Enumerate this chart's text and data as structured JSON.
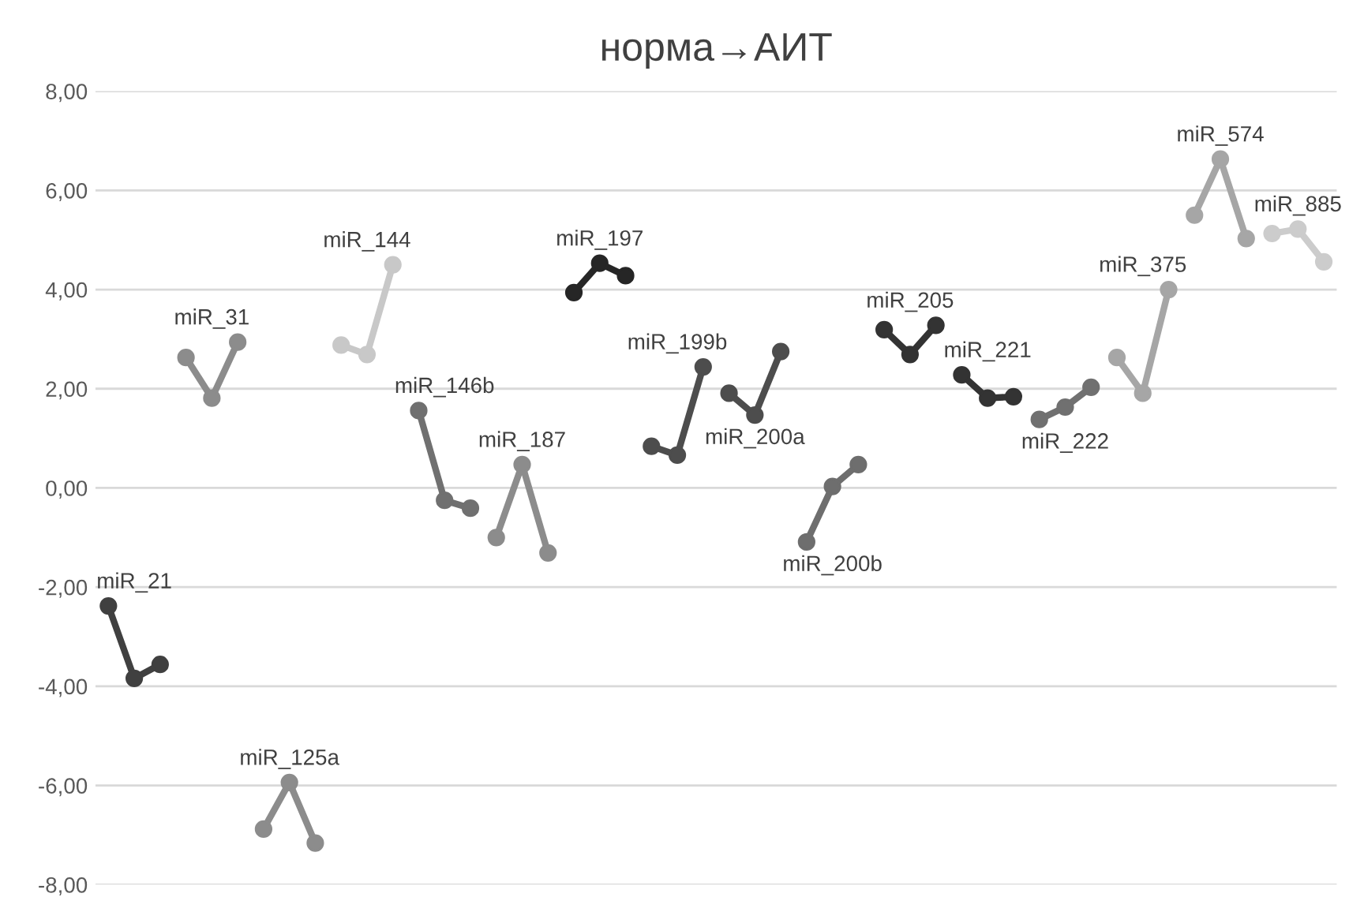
{
  "chart_data": {
    "type": "line",
    "title": "норма→АИТ",
    "categories": [
      null,
      null,
      null,
      null,
      null,
      null,
      null,
      null,
      null,
      null,
      null,
      null,
      null,
      null,
      null,
      null,
      null,
      null,
      null,
      null,
      null,
      null,
      null,
      null,
      null,
      null,
      null,
      null,
      null,
      null,
      null,
      null,
      null,
      null,
      null,
      null,
      null,
      null,
      null,
      null,
      null,
      null,
      null,
      null,
      null,
      null,
      null,
      null
    ],
    "ylim": [
      -8,
      8
    ],
    "yticks": [
      {
        "value": -8,
        "label": "-8,00"
      },
      {
        "value": -6,
        "label": "-6,00"
      },
      {
        "value": -4,
        "label": "-4,00"
      },
      {
        "value": -2,
        "label": "-2,00"
      },
      {
        "value": 0,
        "label": "0,00"
      },
      {
        "value": 2,
        "label": "2,00"
      },
      {
        "value": 4,
        "label": "4,00"
      },
      {
        "value": 6,
        "label": "6,00"
      },
      {
        "value": 8,
        "label": "8,00"
      }
    ],
    "grid": "y",
    "marker": "circle",
    "line_style": "solid",
    "tick_labels": "y",
    "series": [
      {
        "name": "miR_21",
        "color": "#404040",
        "values": [
          -2.38,
          -3.84,
          -3.56,
          null,
          null,
          null,
          null,
          null,
          null,
          null,
          null,
          null,
          null,
          null,
          null,
          null,
          null,
          null,
          null,
          null,
          null,
          null,
          null,
          null,
          null,
          null,
          null,
          null,
          null,
          null,
          null,
          null,
          null,
          null,
          null,
          null,
          null,
          null,
          null,
          null,
          null,
          null,
          null,
          null,
          null,
          null,
          null,
          null
        ]
      },
      {
        "name": "miR_31",
        "color": "#8c8c8c",
        "values": [
          null,
          null,
          null,
          2.63,
          1.81,
          2.94,
          null,
          null,
          null,
          null,
          null,
          null,
          null,
          null,
          null,
          null,
          null,
          null,
          null,
          null,
          null,
          null,
          null,
          null,
          null,
          null,
          null,
          null,
          null,
          null,
          null,
          null,
          null,
          null,
          null,
          null,
          null,
          null,
          null,
          null,
          null,
          null,
          null,
          null,
          null,
          null,
          null,
          null
        ]
      },
      {
        "name": "miR_125a",
        "color": "#8c8c8c",
        "values": [
          null,
          null,
          null,
          null,
          null,
          null,
          -6.88,
          -5.94,
          -7.16,
          null,
          null,
          null,
          null,
          null,
          null,
          null,
          null,
          null,
          null,
          null,
          null,
          null,
          null,
          null,
          null,
          null,
          null,
          null,
          null,
          null,
          null,
          null,
          null,
          null,
          null,
          null,
          null,
          null,
          null,
          null,
          null,
          null,
          null,
          null,
          null,
          null,
          null,
          null
        ]
      },
      {
        "name": "miR_144",
        "color": "#c8c8c8",
        "values": [
          null,
          null,
          null,
          null,
          null,
          null,
          null,
          null,
          null,
          2.88,
          2.69,
          4.5,
          null,
          null,
          null,
          null,
          null,
          null,
          null,
          null,
          null,
          null,
          null,
          null,
          null,
          null,
          null,
          null,
          null,
          null,
          null,
          null,
          null,
          null,
          null,
          null,
          null,
          null,
          null,
          null,
          null,
          null,
          null,
          null,
          null,
          null,
          null,
          null
        ]
      },
      {
        "name": "miR_146b",
        "color": "#707070",
        "values": [
          null,
          null,
          null,
          null,
          null,
          null,
          null,
          null,
          null,
          null,
          null,
          null,
          1.56,
          -0.25,
          -0.41,
          null,
          null,
          null,
          null,
          null,
          null,
          null,
          null,
          null,
          null,
          null,
          null,
          null,
          null,
          null,
          null,
          null,
          null,
          null,
          null,
          null,
          null,
          null,
          null,
          null,
          null,
          null,
          null,
          null,
          null,
          null,
          null,
          null
        ]
      },
      {
        "name": "miR_187",
        "color": "#8c8c8c",
        "values": [
          null,
          null,
          null,
          null,
          null,
          null,
          null,
          null,
          null,
          null,
          null,
          null,
          null,
          null,
          null,
          -1.0,
          0.47,
          -1.31,
          null,
          null,
          null,
          null,
          null,
          null,
          null,
          null,
          null,
          null,
          null,
          null,
          null,
          null,
          null,
          null,
          null,
          null,
          null,
          null,
          null,
          null,
          null,
          null,
          null,
          null,
          null,
          null,
          null,
          null
        ]
      },
      {
        "name": "miR_197",
        "color": "#262626",
        "values": [
          null,
          null,
          null,
          null,
          null,
          null,
          null,
          null,
          null,
          null,
          null,
          null,
          null,
          null,
          null,
          null,
          null,
          null,
          3.94,
          4.53,
          4.28,
          null,
          null,
          null,
          null,
          null,
          null,
          null,
          null,
          null,
          null,
          null,
          null,
          null,
          null,
          null,
          null,
          null,
          null,
          null,
          null,
          null,
          null,
          null,
          null,
          null,
          null,
          null
        ]
      },
      {
        "name": "miR_199b",
        "color": "#4d4d4d",
        "values": [
          null,
          null,
          null,
          null,
          null,
          null,
          null,
          null,
          null,
          null,
          null,
          null,
          null,
          null,
          null,
          null,
          null,
          null,
          null,
          null,
          null,
          0.84,
          0.66,
          2.44,
          null,
          null,
          null,
          null,
          null,
          null,
          null,
          null,
          null,
          null,
          null,
          null,
          null,
          null,
          null,
          null,
          null,
          null,
          null,
          null,
          null,
          null,
          null,
          null
        ]
      },
      {
        "name": "miR_200a",
        "color": "#4d4d4d",
        "values": [
          null,
          null,
          null,
          null,
          null,
          null,
          null,
          null,
          null,
          null,
          null,
          null,
          null,
          null,
          null,
          null,
          null,
          null,
          null,
          null,
          null,
          null,
          null,
          null,
          1.91,
          1.47,
          2.75,
          null,
          null,
          null,
          null,
          null,
          null,
          null,
          null,
          null,
          null,
          null,
          null,
          null,
          null,
          null,
          null,
          null,
          null,
          null,
          null,
          null
        ]
      },
      {
        "name": "miR_200b",
        "color": "#6e6e6e",
        "values": [
          null,
          null,
          null,
          null,
          null,
          null,
          null,
          null,
          null,
          null,
          null,
          null,
          null,
          null,
          null,
          null,
          null,
          null,
          null,
          null,
          null,
          null,
          null,
          null,
          null,
          null,
          null,
          -1.09,
          0.03,
          0.47,
          null,
          null,
          null,
          null,
          null,
          null,
          null,
          null,
          null,
          null,
          null,
          null,
          null,
          null,
          null,
          null,
          null,
          null
        ]
      },
      {
        "name": "miR_205",
        "color": "#333333",
        "values": [
          null,
          null,
          null,
          null,
          null,
          null,
          null,
          null,
          null,
          null,
          null,
          null,
          null,
          null,
          null,
          null,
          null,
          null,
          null,
          null,
          null,
          null,
          null,
          null,
          null,
          null,
          null,
          null,
          null,
          null,
          3.19,
          2.69,
          3.28,
          null,
          null,
          null,
          null,
          null,
          null,
          null,
          null,
          null,
          null,
          null,
          null,
          null,
          null,
          null
        ]
      },
      {
        "name": "miR_221",
        "color": "#333333",
        "values": [
          null,
          null,
          null,
          null,
          null,
          null,
          null,
          null,
          null,
          null,
          null,
          null,
          null,
          null,
          null,
          null,
          null,
          null,
          null,
          null,
          null,
          null,
          null,
          null,
          null,
          null,
          null,
          null,
          null,
          null,
          null,
          null,
          null,
          2.28,
          1.81,
          1.84,
          null,
          null,
          null,
          null,
          null,
          null,
          null,
          null,
          null,
          null,
          null,
          null
        ]
      },
      {
        "name": "miR_222",
        "color": "#707070",
        "values": [
          null,
          null,
          null,
          null,
          null,
          null,
          null,
          null,
          null,
          null,
          null,
          null,
          null,
          null,
          null,
          null,
          null,
          null,
          null,
          null,
          null,
          null,
          null,
          null,
          null,
          null,
          null,
          null,
          null,
          null,
          null,
          null,
          null,
          null,
          null,
          null,
          1.38,
          1.63,
          2.03,
          null,
          null,
          null,
          null,
          null,
          null,
          null,
          null,
          null
        ]
      },
      {
        "name": "miR_375",
        "color": "#a6a6a6",
        "values": [
          null,
          null,
          null,
          null,
          null,
          null,
          null,
          null,
          null,
          null,
          null,
          null,
          null,
          null,
          null,
          null,
          null,
          null,
          null,
          null,
          null,
          null,
          null,
          null,
          null,
          null,
          null,
          null,
          null,
          null,
          null,
          null,
          null,
          null,
          null,
          null,
          null,
          null,
          null,
          2.63,
          1.91,
          4.0,
          null,
          null,
          null,
          null,
          null,
          null
        ]
      },
      {
        "name": "miR_574",
        "color": "#a6a6a6",
        "values": [
          null,
          null,
          null,
          null,
          null,
          null,
          null,
          null,
          null,
          null,
          null,
          null,
          null,
          null,
          null,
          null,
          null,
          null,
          null,
          null,
          null,
          null,
          null,
          null,
          null,
          null,
          null,
          null,
          null,
          null,
          null,
          null,
          null,
          null,
          null,
          null,
          null,
          null,
          null,
          null,
          null,
          null,
          5.5,
          6.63,
          5.03,
          null,
          null,
          null
        ]
      },
      {
        "name": "miR_885",
        "color": "#cccccc",
        "values": [
          null,
          null,
          null,
          null,
          null,
          null,
          null,
          null,
          null,
          null,
          null,
          null,
          null,
          null,
          null,
          null,
          null,
          null,
          null,
          null,
          null,
          null,
          null,
          null,
          null,
          null,
          null,
          null,
          null,
          null,
          null,
          null,
          null,
          null,
          null,
          null,
          null,
          null,
          null,
          null,
          null,
          null,
          null,
          null,
          null,
          5.13,
          5.22,
          4.56
        ]
      }
    ]
  }
}
